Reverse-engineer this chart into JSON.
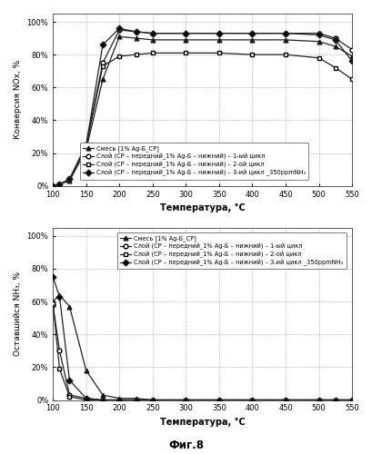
{
  "temp": [
    100,
    110,
    125,
    150,
    175,
    200,
    225,
    250,
    300,
    350,
    400,
    450,
    500,
    525,
    550
  ],
  "top": {
    "series1_nox": [
      0,
      1,
      3,
      22,
      65,
      91,
      90,
      89,
      89,
      89,
      89,
      89,
      88,
      85,
      79
    ],
    "series2_nox": [
      0,
      1,
      4,
      25,
      75,
      95,
      94,
      93,
      93,
      93,
      93,
      93,
      93,
      90,
      83
    ],
    "series3_nox": [
      0,
      1,
      4,
      24,
      73,
      79,
      80,
      81,
      81,
      81,
      80,
      80,
      78,
      72,
      65
    ],
    "series4_nox": [
      0,
      1,
      4,
      25,
      86,
      96,
      94,
      93,
      93,
      93,
      93,
      93,
      92,
      89,
      76
    ],
    "ylabel": "Конверсия NOх, %",
    "yticks": [
      0,
      20,
      40,
      60,
      80,
      100
    ],
    "ytick_labels": [
      "0%",
      "20%",
      "40%",
      "60%",
      "80%",
      "100%"
    ]
  },
  "bottom": {
    "series1_nh3": [
      60,
      64,
      57,
      18,
      3,
      1,
      1,
      0,
      0,
      0,
      0,
      0,
      0,
      0,
      0
    ],
    "series2_nh3": [
      58,
      30,
      3,
      1,
      0,
      0,
      0,
      0,
      0,
      0,
      0,
      0,
      0,
      0,
      0
    ],
    "series3_nh3": [
      59,
      19,
      2,
      0,
      0,
      0,
      0,
      0,
      0,
      0,
      0,
      0,
      0,
      0,
      0
    ],
    "series4_nh3": [
      75,
      63,
      12,
      1,
      0,
      0,
      0,
      0,
      0,
      0,
      0,
      0,
      0,
      0,
      0
    ],
    "ylabel": "Оставшийся NH₃, %",
    "yticks": [
      0,
      20,
      40,
      60,
      80,
      100
    ],
    "ytick_labels": [
      "0%",
      "20%",
      "40%",
      "60%",
      "80%",
      "100%"
    ]
  },
  "xlabel": "Температура, °C",
  "xlim": [
    100,
    550
  ],
  "xticks": [
    100,
    150,
    200,
    250,
    300,
    350,
    400,
    450,
    500,
    550
  ],
  "legend_labels": [
    "Смесь [1% Ag-Б_CP]",
    "Слой (CP – передний_1% Ag-Б – нижний) – 1-ый цикл",
    "Слой (CP – передний_1% Ag-Б – нижний) – 2-ой цикл",
    "Слой (CP – передний_1% Ag-Б – нижний) – 3-ий цикл _350ppmNH₃"
  ],
  "fig8_label": "Фиг.8",
  "marker_s1": "^",
  "marker_s2": "o",
  "marker_s3": "s",
  "marker_s4": "D",
  "line_color": "#222222",
  "bg_color": "#ffffff",
  "grid_color": "#aaaaaa"
}
